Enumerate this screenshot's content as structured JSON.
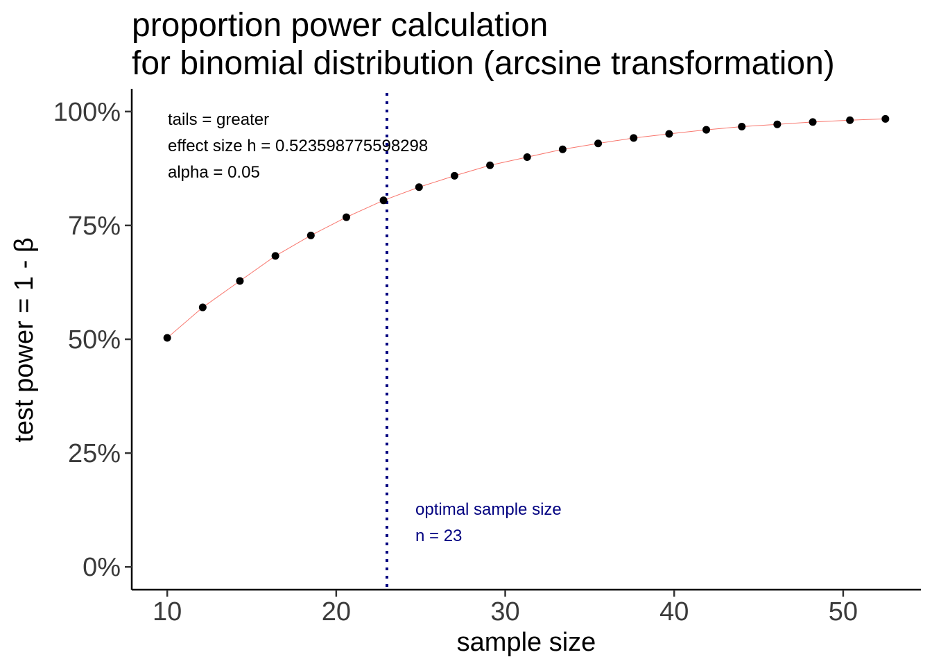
{
  "chart_data": {
    "type": "scatter",
    "title_lines": [
      "proportion power calculation",
      "for binomial distribution (arcsine transformation)"
    ],
    "xlabel": "sample size",
    "ylabel": "test power = 1 - β",
    "xlim": [
      7.9,
      54.6
    ],
    "ylim": [
      -0.05,
      1.05
    ],
    "x_ticks": [
      10,
      20,
      30,
      40,
      50
    ],
    "x_tick_labels": [
      "10",
      "20",
      "30",
      "40",
      "50"
    ],
    "y_ticks": [
      0,
      0.25,
      0.5,
      0.75,
      1.0
    ],
    "y_tick_labels": [
      "0%",
      "25%",
      "50%",
      "75%",
      "100%"
    ],
    "series": [
      {
        "x": [
          10,
          12.1,
          14.3,
          16.4,
          18.5,
          20.6,
          22.8,
          24.9,
          27,
          29.1,
          31.3,
          33.4,
          35.5,
          37.6,
          39.7,
          41.9,
          44,
          46.1,
          48.2,
          50.4,
          52.5
        ],
        "y": [
          0.503,
          0.57,
          0.628,
          0.683,
          0.728,
          0.768,
          0.805,
          0.834,
          0.859,
          0.882,
          0.9,
          0.917,
          0.93,
          0.942,
          0.951,
          0.96,
          0.967,
          0.972,
          0.977,
          0.981,
          0.984
        ]
      }
    ],
    "point_color": "#000000",
    "line_color": "#f8766d",
    "vline": {
      "x": 23,
      "color": "#000080",
      "style": "dotted"
    },
    "annotations": {
      "top_left": [
        "tails = greater",
        "effect size h = 0.523598775598298",
        "alpha = 0.05"
      ],
      "optimal": [
        "optimal sample size",
        "n = 23"
      ]
    },
    "grid": false
  }
}
